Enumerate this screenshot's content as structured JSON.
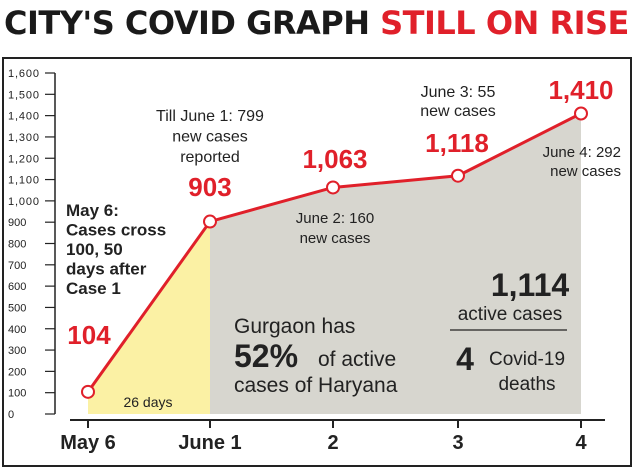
{
  "headline": {
    "part1": "CITY'S COVID GRAPH",
    "part2": "STILL ON RISE"
  },
  "colors": {
    "accent": "#e0202a",
    "shade_gray": "#d7d6cf",
    "shade_yellow": "#fbf1a4",
    "frame": "#222222"
  },
  "chart_data": {
    "type": "line",
    "categories": [
      "May 6",
      "June 1",
      "2",
      "3",
      "4"
    ],
    "values": [
      104,
      903,
      1063,
      1118,
      1410
    ],
    "value_labels": [
      "104",
      "903",
      "1,063",
      "1,118",
      "1,410"
    ],
    "ylim": [
      0,
      1600
    ],
    "yticks": [
      "0",
      "100",
      "200",
      "300",
      "400",
      "500",
      "600",
      "700",
      "800",
      "900",
      "1,000",
      "1,100",
      "1,200",
      "1,300",
      "1,400",
      "1,500",
      "1,600"
    ],
    "annotations": {
      "may6": [
        "May 6:",
        "Cases cross",
        "100, 50",
        "days after",
        "Case 1"
      ],
      "june1": [
        "Till June 1: 799",
        "new cases",
        "reported"
      ],
      "june2": [
        "June 2: 160",
        "new cases"
      ],
      "june3": [
        "June 3: 55",
        "new cases"
      ],
      "june4": [
        "June 4: 292",
        "new cases"
      ],
      "days": "26 days"
    },
    "gurgaon": {
      "line1": "Gurgaon has",
      "percent": "52%",
      "line2a": "of active",
      "line2b": "cases of Haryana"
    },
    "active": {
      "count": "1,114",
      "label": "active cases"
    },
    "deaths": {
      "count": "4",
      "label1": "Covid-19",
      "label2": "deaths"
    }
  }
}
